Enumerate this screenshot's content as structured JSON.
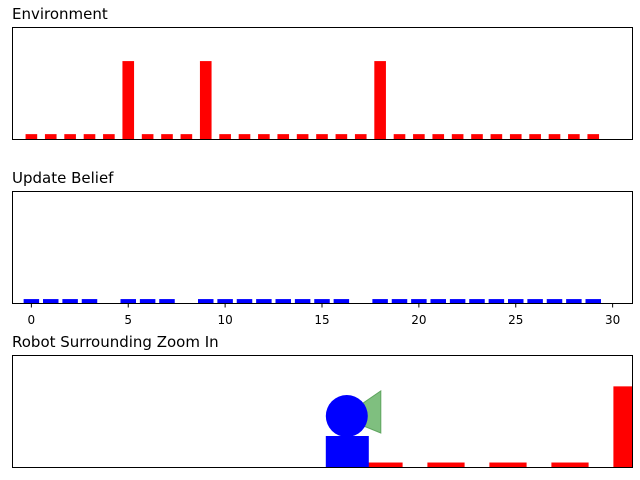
{
  "chart_data": [
    {
      "type": "bar",
      "title": "Environment",
      "xlim": [
        -1,
        31
      ],
      "ylim": [
        0,
        1.15
      ],
      "x": [
        0,
        1,
        2,
        3,
        4,
        5,
        6,
        7,
        8,
        9,
        10,
        11,
        12,
        13,
        14,
        15,
        16,
        17,
        18,
        19,
        20,
        21,
        22,
        23,
        24,
        25,
        26,
        27,
        28,
        29
      ],
      "values": [
        0.05,
        0.05,
        0.05,
        0.05,
        0.05,
        0.8,
        0.05,
        0.05,
        0.05,
        0.8,
        0.05,
        0.05,
        0.05,
        0.05,
        0.05,
        0.05,
        0.05,
        0.05,
        0.8,
        0.05,
        0.05,
        0.05,
        0.05,
        0.05,
        0.05,
        0.05,
        0.05,
        0.05,
        0.05,
        0.05
      ],
      "color": "#ff0000",
      "x_tick_labels_shown": false
    },
    {
      "type": "bar",
      "title": "Update Belief",
      "xlim": [
        -1,
        31
      ],
      "ylim": [
        0,
        1
      ],
      "x": [
        0,
        1,
        2,
        3,
        5,
        6,
        7,
        9,
        10,
        11,
        12,
        13,
        14,
        15,
        16,
        18,
        19,
        20,
        21,
        22,
        23,
        24,
        25,
        26,
        27,
        28,
        29
      ],
      "values": [
        0.035,
        0.035,
        0.035,
        0.035,
        0.035,
        0.035,
        0.035,
        0.035,
        0.035,
        0.035,
        0.035,
        0.035,
        0.035,
        0.035,
        0.035,
        0.035,
        0.035,
        0.035,
        0.035,
        0.035,
        0.035,
        0.035,
        0.035,
        0.035,
        0.035,
        0.035,
        0.035
      ],
      "color": "#0000ff",
      "x_ticks": [
        "0",
        "5",
        "10",
        "15",
        "20",
        "25",
        "30"
      ]
    },
    {
      "type": "bar",
      "title": "Robot Surrounding Zoom In",
      "xlim": [
        -0.5,
        9.5
      ],
      "ylim": [
        0,
        1
      ],
      "x": [
        5.5,
        6.5,
        7.5,
        8.5,
        9.5
      ],
      "values": [
        0.04,
        0.04,
        0.04,
        0.04,
        0.72
      ],
      "color": "#ff0000",
      "robot": {
        "x": 4.9,
        "body_color": "#0000ff",
        "sensor_color": "#7fbf7f"
      }
    }
  ]
}
